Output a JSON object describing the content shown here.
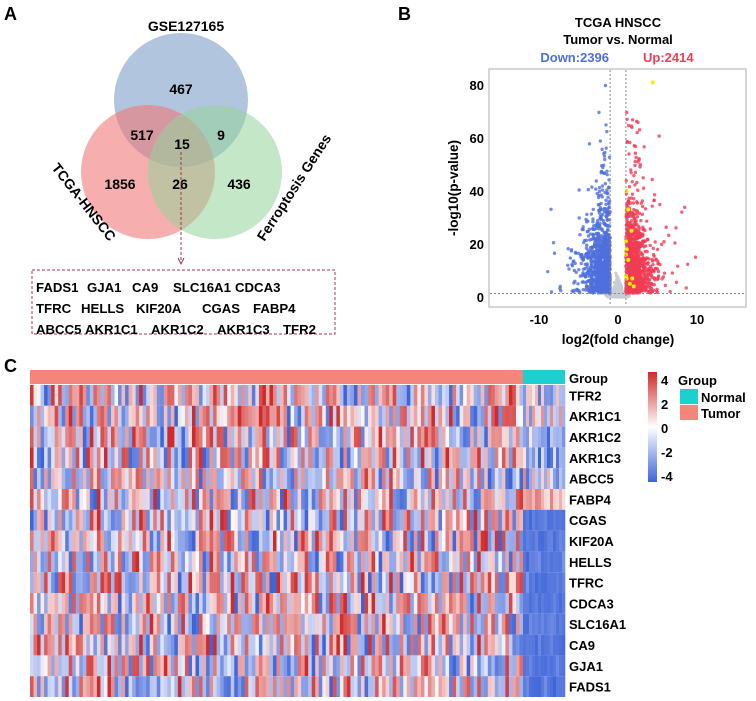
{
  "panels": {
    "a": "A",
    "b": "B",
    "c": "C"
  },
  "chart_data": [
    {
      "type": "venn",
      "sets": [
        {
          "name": "GSE127165",
          "color": "#7f9fc8"
        },
        {
          "name": "TCGA-HNSCC",
          "color": "#f07878"
        },
        {
          "name": "Ferroptosis Genes",
          "color": "#94d49a"
        }
      ],
      "regions": {
        "gse_only": 467,
        "tcga_only": 1856,
        "ferro_only": 436,
        "gse_tcga": 517,
        "gse_ferro": 9,
        "tcga_ferro": 26,
        "all_three": 15
      },
      "intersection_genes": [
        [
          "FADS1",
          "GJA1",
          "CA9",
          "SLC16A1",
          "CDCA3"
        ],
        [
          "TFRC",
          "HELLS",
          "KIF20A",
          "CGAS",
          "FABP4"
        ],
        [
          "ABCC5",
          "AKR1C1",
          "AKR1C2",
          "AKR1C3",
          "TFR2"
        ]
      ]
    },
    {
      "type": "scatter",
      "title": "TCGA HNSCC",
      "subtitle": "Tumor vs. Normal",
      "down_label": "Down:2396",
      "up_label": "Up:2414",
      "down_count": 2396,
      "up_count": 2414,
      "xlabel": "log2(fold change)",
      "ylabel": "-log10(p-value)",
      "xlim": [
        -16.3,
        10
      ],
      "ylim": [
        -4,
        86
      ],
      "xticks": [
        "-10",
        "0",
        "10"
      ],
      "yticks": [
        "0",
        "20",
        "40",
        "60",
        "80"
      ],
      "fc_thresholds": [
        -1,
        1
      ],
      "p_threshold": 1.3,
      "colors": {
        "down": "#4f6fdc",
        "up": "#f03c54",
        "ns": "#c8ccd4",
        "highlight": "#f4f000"
      }
    },
    {
      "type": "heatmap",
      "annotation_label": "Group",
      "rows": [
        "TFR2",
        "AKR1C1",
        "AKR1C2",
        "AKR1C3",
        "ABCC5",
        "FABP4",
        "CGAS",
        "KIF20A",
        "HELLS",
        "TFRC",
        "CDCA3",
        "SLC16A1",
        "CA9",
        "GJA1",
        "FADS1"
      ],
      "groups": [
        {
          "name": "Normal",
          "color": "#1ecfd0"
        },
        {
          "name": "Tumor",
          "color": "#f4857a"
        }
      ],
      "legend_title": "Group",
      "colorbar_ticks": [
        "4",
        "2",
        "0",
        "-2",
        "-4"
      ],
      "colorbar_range": [
        -4,
        4
      ],
      "colors": {
        "high": "#d02a2a",
        "mid": "#ffffff",
        "low": "#3e64d8"
      }
    }
  ]
}
